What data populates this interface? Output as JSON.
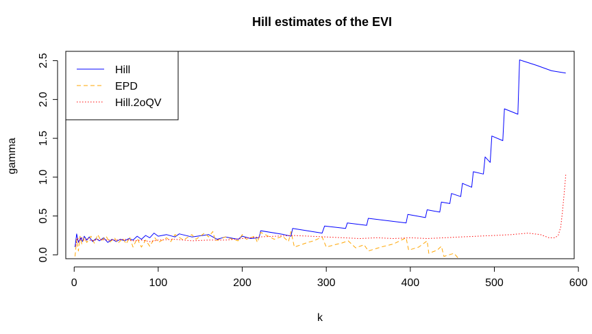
{
  "chart_data": {
    "type": "line",
    "title": "Hill estimates of the EVI",
    "xlabel": "k",
    "ylabel": "gamma",
    "xlim": [
      -10,
      595
    ],
    "ylim": [
      -0.05,
      2.62
    ],
    "x_ticks": [
      0,
      100,
      200,
      300,
      400,
      500,
      600
    ],
    "y_ticks": [
      0.0,
      0.5,
      1.0,
      1.5,
      2.0,
      2.5
    ],
    "grid": false,
    "legend_position": "top-left",
    "series": [
      {
        "name": "Hill",
        "color": "#0000ff",
        "dash": "solid",
        "points": [
          [
            1,
            0.1
          ],
          [
            3,
            0.27
          ],
          [
            5,
            0.16
          ],
          [
            8,
            0.22
          ],
          [
            10,
            0.17
          ],
          [
            12,
            0.24
          ],
          [
            15,
            0.19
          ],
          [
            18,
            0.23
          ],
          [
            22,
            0.17
          ],
          [
            26,
            0.21
          ],
          [
            30,
            0.18
          ],
          [
            35,
            0.22
          ],
          [
            40,
            0.16
          ],
          [
            45,
            0.2
          ],
          [
            50,
            0.17
          ],
          [
            55,
            0.2
          ],
          [
            60,
            0.18
          ],
          [
            65,
            0.21
          ],
          [
            70,
            0.19
          ],
          [
            75,
            0.24
          ],
          [
            80,
            0.2
          ],
          [
            85,
            0.25
          ],
          [
            90,
            0.22
          ],
          [
            95,
            0.28
          ],
          [
            100,
            0.24
          ],
          [
            110,
            0.26
          ],
          [
            120,
            0.23
          ],
          [
            125,
            0.27
          ],
          [
            140,
            0.23
          ],
          [
            160,
            0.26
          ],
          [
            170,
            0.2
          ],
          [
            180,
            0.23
          ],
          [
            195,
            0.2
          ],
          [
            200,
            0.24
          ],
          [
            210,
            0.21
          ],
          [
            220,
            0.22
          ],
          [
            222,
            0.31
          ],
          [
            250,
            0.26
          ],
          [
            258,
            0.24
          ],
          [
            260,
            0.34
          ],
          [
            295,
            0.28
          ],
          [
            298,
            0.37
          ],
          [
            323,
            0.34
          ],
          [
            325,
            0.41
          ],
          [
            348,
            0.38
          ],
          [
            350,
            0.47
          ],
          [
            395,
            0.41
          ],
          [
            397,
            0.52
          ],
          [
            418,
            0.48
          ],
          [
            420,
            0.58
          ],
          [
            435,
            0.55
          ],
          [
            437,
            0.68
          ],
          [
            447,
            0.66
          ],
          [
            449,
            0.79
          ],
          [
            460,
            0.75
          ],
          [
            462,
            0.92
          ],
          [
            473,
            0.87
          ],
          [
            475,
            1.07
          ],
          [
            487,
            1.04
          ],
          [
            489,
            1.26
          ],
          [
            495,
            1.19
          ],
          [
            497,
            1.53
          ],
          [
            510,
            1.47
          ],
          [
            512,
            1.88
          ],
          [
            528,
            1.81
          ],
          [
            530,
            2.51
          ],
          [
            550,
            2.44
          ],
          [
            568,
            2.37
          ],
          [
            585,
            2.34
          ]
        ]
      },
      {
        "name": "EPD",
        "color": "#ffa500",
        "dash": "dashed",
        "points": [
          [
            1,
            -0.02
          ],
          [
            3,
            0.2
          ],
          [
            5,
            0.05
          ],
          [
            7,
            0.24
          ],
          [
            9,
            0.14
          ],
          [
            12,
            0.22
          ],
          [
            15,
            0.16
          ],
          [
            20,
            0.24
          ],
          [
            24,
            0.15
          ],
          [
            28,
            0.26
          ],
          [
            32,
            0.18
          ],
          [
            38,
            0.24
          ],
          [
            42,
            0.16
          ],
          [
            48,
            0.22
          ],
          [
            52,
            0.15
          ],
          [
            58,
            0.21
          ],
          [
            62,
            0.14
          ],
          [
            66,
            0.23
          ],
          [
            70,
            0.1
          ],
          [
            75,
            0.21
          ],
          [
            80,
            0.1
          ],
          [
            85,
            0.19
          ],
          [
            90,
            0.11
          ],
          [
            96,
            0.22
          ],
          [
            100,
            0.16
          ],
          [
            110,
            0.22
          ],
          [
            115,
            0.17
          ],
          [
            120,
            0.26
          ],
          [
            130,
            0.19
          ],
          [
            140,
            0.26
          ],
          [
            145,
            0.2
          ],
          [
            155,
            0.28
          ],
          [
            160,
            0.23
          ],
          [
            165,
            0.3
          ],
          [
            168,
            0.18
          ],
          [
            180,
            0.23
          ],
          [
            195,
            0.18
          ],
          [
            200,
            0.26
          ],
          [
            205,
            0.2
          ],
          [
            215,
            0.24
          ],
          [
            218,
            0.16
          ],
          [
            222,
            0.29
          ],
          [
            238,
            0.2
          ],
          [
            248,
            0.24
          ],
          [
            255,
            0.17
          ],
          [
            258,
            0.3
          ],
          [
            262,
            0.1
          ],
          [
            278,
            0.16
          ],
          [
            285,
            0.18
          ],
          [
            295,
            0.23
          ],
          [
            300,
            0.1
          ],
          [
            310,
            0.13
          ],
          [
            318,
            0.15
          ],
          [
            326,
            0.18
          ],
          [
            335,
            0.09
          ],
          [
            345,
            0.13
          ],
          [
            350,
            0.05
          ],
          [
            365,
            0.1
          ],
          [
            380,
            0.14
          ],
          [
            395,
            0.22
          ],
          [
            398,
            0.06
          ],
          [
            410,
            0.1
          ],
          [
            420,
            0.18
          ],
          [
            422,
            0.02
          ],
          [
            432,
            0.06
          ],
          [
            437,
            0.11
          ],
          [
            440,
            -0.02
          ],
          [
            452,
            0.02
          ],
          [
            460,
            -0.08
          ],
          [
            470,
            -0.05
          ]
        ]
      },
      {
        "name": "Hill.2oQV",
        "color": "#ff0000",
        "dash": "dotted",
        "points": [
          [
            2,
            0.12
          ],
          [
            4,
            0.22
          ],
          [
            6,
            0.17
          ],
          [
            9,
            0.22
          ],
          [
            12,
            0.18
          ],
          [
            16,
            0.21
          ],
          [
            20,
            0.18
          ],
          [
            30,
            0.2
          ],
          [
            40,
            0.19
          ],
          [
            50,
            0.19
          ],
          [
            60,
            0.2
          ],
          [
            70,
            0.18
          ],
          [
            80,
            0.19
          ],
          [
            90,
            0.17
          ],
          [
            100,
            0.19
          ],
          [
            120,
            0.2
          ],
          [
            140,
            0.18
          ],
          [
            160,
            0.19
          ],
          [
            180,
            0.19
          ],
          [
            200,
            0.21
          ],
          [
            220,
            0.23
          ],
          [
            240,
            0.24
          ],
          [
            260,
            0.25
          ],
          [
            280,
            0.24
          ],
          [
            300,
            0.23
          ],
          [
            320,
            0.22
          ],
          [
            340,
            0.21
          ],
          [
            360,
            0.22
          ],
          [
            380,
            0.21
          ],
          [
            400,
            0.22
          ],
          [
            420,
            0.21
          ],
          [
            440,
            0.22
          ],
          [
            460,
            0.23
          ],
          [
            480,
            0.24
          ],
          [
            500,
            0.25
          ],
          [
            520,
            0.26
          ],
          [
            540,
            0.28
          ],
          [
            555,
            0.26
          ],
          [
            565,
            0.22
          ],
          [
            572,
            0.22
          ],
          [
            576,
            0.25
          ],
          [
            579,
            0.36
          ],
          [
            581,
            0.55
          ],
          [
            583,
            0.78
          ],
          [
            585,
            1.03
          ]
        ]
      }
    ]
  }
}
